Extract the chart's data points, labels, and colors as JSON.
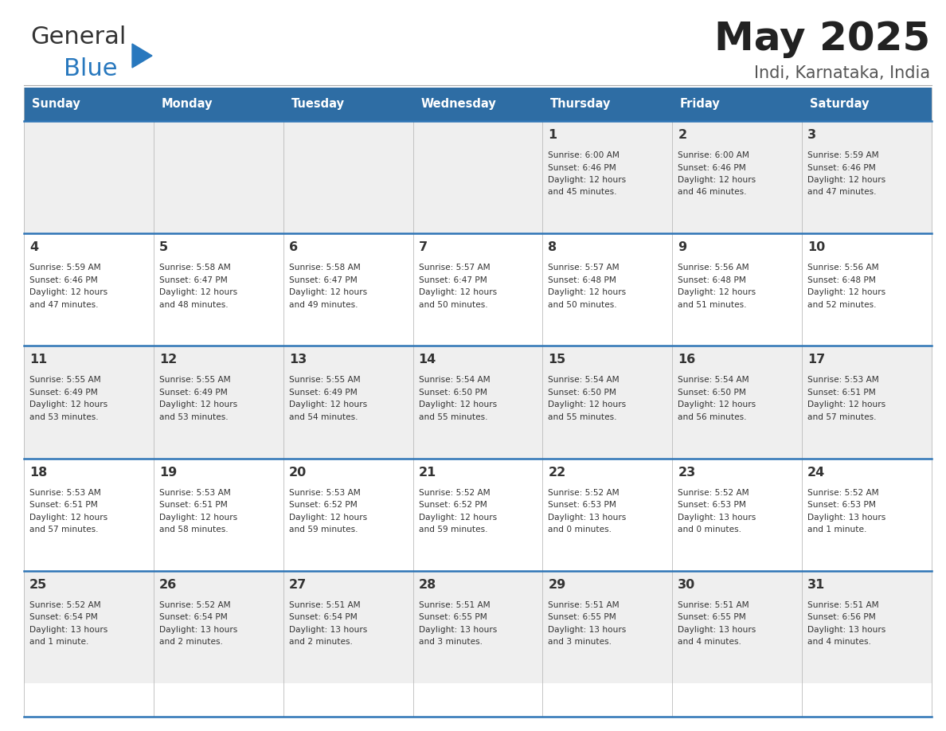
{
  "title": "May 2025",
  "subtitle": "Indi, Karnataka, India",
  "header_color": "#2E6DA4",
  "header_text_color": "#FFFFFF",
  "day_names": [
    "Sunday",
    "Monday",
    "Tuesday",
    "Wednesday",
    "Thursday",
    "Friday",
    "Saturday"
  ],
  "row_bg_colors": [
    "#EFEFEF",
    "#FFFFFF"
  ],
  "title_color": "#222222",
  "subtitle_color": "#555555",
  "cell_text_color": "#333333",
  "day_num_color": "#333333",
  "calendar": [
    [
      null,
      null,
      null,
      null,
      {
        "day": 1,
        "sunrise": "6:00 AM",
        "sunset": "6:46 PM",
        "daylight": "12 hours",
        "daylight2": "and 45 minutes."
      },
      {
        "day": 2,
        "sunrise": "6:00 AM",
        "sunset": "6:46 PM",
        "daylight": "12 hours",
        "daylight2": "and 46 minutes."
      },
      {
        "day": 3,
        "sunrise": "5:59 AM",
        "sunset": "6:46 PM",
        "daylight": "12 hours",
        "daylight2": "and 47 minutes."
      }
    ],
    [
      {
        "day": 4,
        "sunrise": "5:59 AM",
        "sunset": "6:46 PM",
        "daylight": "12 hours",
        "daylight2": "and 47 minutes."
      },
      {
        "day": 5,
        "sunrise": "5:58 AM",
        "sunset": "6:47 PM",
        "daylight": "12 hours",
        "daylight2": "and 48 minutes."
      },
      {
        "day": 6,
        "sunrise": "5:58 AM",
        "sunset": "6:47 PM",
        "daylight": "12 hours",
        "daylight2": "and 49 minutes."
      },
      {
        "day": 7,
        "sunrise": "5:57 AM",
        "sunset": "6:47 PM",
        "daylight": "12 hours",
        "daylight2": "and 50 minutes."
      },
      {
        "day": 8,
        "sunrise": "5:57 AM",
        "sunset": "6:48 PM",
        "daylight": "12 hours",
        "daylight2": "and 50 minutes."
      },
      {
        "day": 9,
        "sunrise": "5:56 AM",
        "sunset": "6:48 PM",
        "daylight": "12 hours",
        "daylight2": "and 51 minutes."
      },
      {
        "day": 10,
        "sunrise": "5:56 AM",
        "sunset": "6:48 PM",
        "daylight": "12 hours",
        "daylight2": "and 52 minutes."
      }
    ],
    [
      {
        "day": 11,
        "sunrise": "5:55 AM",
        "sunset": "6:49 PM",
        "daylight": "12 hours",
        "daylight2": "and 53 minutes."
      },
      {
        "day": 12,
        "sunrise": "5:55 AM",
        "sunset": "6:49 PM",
        "daylight": "12 hours",
        "daylight2": "and 53 minutes."
      },
      {
        "day": 13,
        "sunrise": "5:55 AM",
        "sunset": "6:49 PM",
        "daylight": "12 hours",
        "daylight2": "and 54 minutes."
      },
      {
        "day": 14,
        "sunrise": "5:54 AM",
        "sunset": "6:50 PM",
        "daylight": "12 hours",
        "daylight2": "and 55 minutes."
      },
      {
        "day": 15,
        "sunrise": "5:54 AM",
        "sunset": "6:50 PM",
        "daylight": "12 hours",
        "daylight2": "and 55 minutes."
      },
      {
        "day": 16,
        "sunrise": "5:54 AM",
        "sunset": "6:50 PM",
        "daylight": "12 hours",
        "daylight2": "and 56 minutes."
      },
      {
        "day": 17,
        "sunrise": "5:53 AM",
        "sunset": "6:51 PM",
        "daylight": "12 hours",
        "daylight2": "and 57 minutes."
      }
    ],
    [
      {
        "day": 18,
        "sunrise": "5:53 AM",
        "sunset": "6:51 PM",
        "daylight": "12 hours",
        "daylight2": "and 57 minutes."
      },
      {
        "day": 19,
        "sunrise": "5:53 AM",
        "sunset": "6:51 PM",
        "daylight": "12 hours",
        "daylight2": "and 58 minutes."
      },
      {
        "day": 20,
        "sunrise": "5:53 AM",
        "sunset": "6:52 PM",
        "daylight": "12 hours",
        "daylight2": "and 59 minutes."
      },
      {
        "day": 21,
        "sunrise": "5:52 AM",
        "sunset": "6:52 PM",
        "daylight": "12 hours",
        "daylight2": "and 59 minutes."
      },
      {
        "day": 22,
        "sunrise": "5:52 AM",
        "sunset": "6:53 PM",
        "daylight": "13 hours",
        "daylight2": "and 0 minutes."
      },
      {
        "day": 23,
        "sunrise": "5:52 AM",
        "sunset": "6:53 PM",
        "daylight": "13 hours",
        "daylight2": "and 0 minutes."
      },
      {
        "day": 24,
        "sunrise": "5:52 AM",
        "sunset": "6:53 PM",
        "daylight": "13 hours",
        "daylight2": "and 1 minute."
      }
    ],
    [
      {
        "day": 25,
        "sunrise": "5:52 AM",
        "sunset": "6:54 PM",
        "daylight": "13 hours",
        "daylight2": "and 1 minute."
      },
      {
        "day": 26,
        "sunrise": "5:52 AM",
        "sunset": "6:54 PM",
        "daylight": "13 hours",
        "daylight2": "and 2 minutes."
      },
      {
        "day": 27,
        "sunrise": "5:51 AM",
        "sunset": "6:54 PM",
        "daylight": "13 hours",
        "daylight2": "and 2 minutes."
      },
      {
        "day": 28,
        "sunrise": "5:51 AM",
        "sunset": "6:55 PM",
        "daylight": "13 hours",
        "daylight2": "and 3 minutes."
      },
      {
        "day": 29,
        "sunrise": "5:51 AM",
        "sunset": "6:55 PM",
        "daylight": "13 hours",
        "daylight2": "and 3 minutes."
      },
      {
        "day": 30,
        "sunrise": "5:51 AM",
        "sunset": "6:55 PM",
        "daylight": "13 hours",
        "daylight2": "and 4 minutes."
      },
      {
        "day": 31,
        "sunrise": "5:51 AM",
        "sunset": "6:56 PM",
        "daylight": "13 hours",
        "daylight2": "and 4 minutes."
      }
    ]
  ],
  "border_color": "#2E75B6",
  "logo_general_color": "#333333",
  "logo_blue_color": "#2878BE",
  "fig_width": 11.88,
  "fig_height": 9.18,
  "dpi": 100
}
